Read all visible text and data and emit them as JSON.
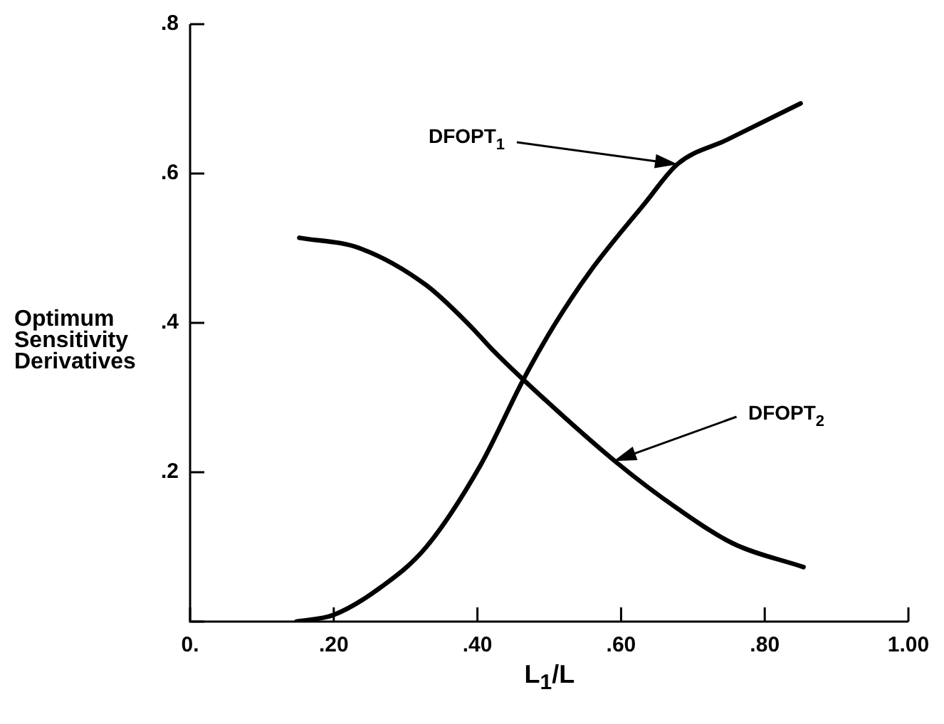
{
  "chart_data": {
    "type": "line",
    "xlabel": "L$_{1}$/L",
    "ylabel": "Optimum Sensitivity Derivatives",
    "xlim": [
      0,
      1
    ],
    "ylim": [
      0,
      0.8
    ],
    "xticks": [
      {
        "value": 0,
        "label": "0."
      },
      {
        "value": 0.2,
        "label": ".20"
      },
      {
        "value": 0.4,
        "label": ".40"
      },
      {
        "value": 0.6,
        "label": ".60"
      },
      {
        "value": 0.8,
        "label": ".80"
      },
      {
        "value": 1,
        "label": "1.00"
      }
    ],
    "yticks": [
      {
        "value": 0,
        "label": null
      },
      {
        "value": 0.2,
        "label": ".2"
      },
      {
        "value": 0.4,
        "label": ".4"
      },
      {
        "value": 0.6,
        "label": ".6"
      },
      {
        "value": 0.8,
        "label": ".8"
      }
    ],
    "grid": false,
    "legend": false,
    "marker": "none",
    "line_style": "solid",
    "series": [
      {
        "color": "#000000",
        "x": [
          0.148,
          0.2,
          0.267,
          0.328,
          0.404,
          0.465,
          0.507,
          0.557,
          0.633,
          0.679,
          0.747,
          0.85
        ],
        "values": [
          0,
          0.009,
          0.047,
          0.099,
          0.209,
          0.326,
          0.397,
          0.469,
          0.56,
          0.613,
          0.645,
          0.694
        ]
      },
      {
        "color": "#000000",
        "x": [
          0.152,
          0.236,
          0.328,
          0.389,
          0.419,
          0.465,
          0.595,
          0.679,
          0.755,
          0.854
        ],
        "values": [
          0.514,
          0.5,
          0.451,
          0.397,
          0.366,
          0.323,
          0.212,
          0.151,
          0.105,
          0.073
        ]
      }
    ],
    "annotations": [
      "DFOPT$_{1}$",
      "DFOPT$_{2}$"
    ]
  }
}
